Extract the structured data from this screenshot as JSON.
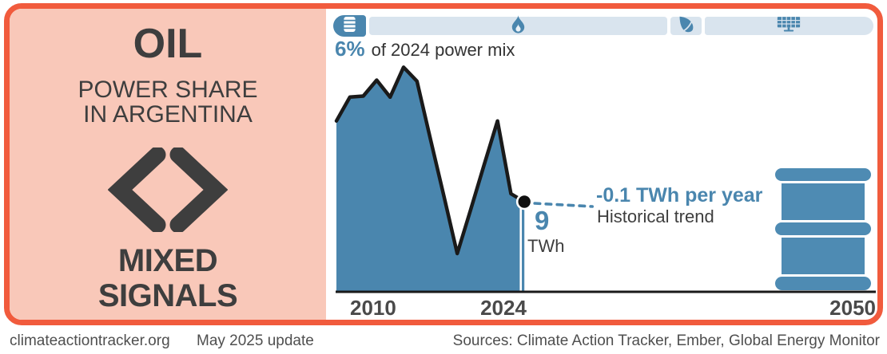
{
  "colors": {
    "accent_orange": "#F15B3D",
    "panel_salmon": "#F9C8B9",
    "accent_blue": "#4A86AE",
    "bar_track_blue": "#D9E4EE",
    "text_dark": "#3E3E3E",
    "line_black": "#1A1A1A"
  },
  "left_panel": {
    "title": "OIL",
    "subtitle_line1": "POWER SHARE",
    "subtitle_line2": "IN ARGENTINA",
    "verdict_line1": "MIXED",
    "verdict_line2": "SIGNALS"
  },
  "power_mix_bar": {
    "caption_value": "6%",
    "caption_text": "of 2024 power mix",
    "segments": [
      {
        "id": "oil",
        "icon": "oil-barrel-icon",
        "share_pct": 6.2,
        "active": true
      },
      {
        "id": "gas",
        "icon": "flame-icon",
        "share_pct": 56.2,
        "active": false
      },
      {
        "id": "bioenergy",
        "icon": "leaf-icon",
        "share_pct": 5.8,
        "active": false
      },
      {
        "id": "solar",
        "icon": "solar-panel-icon",
        "share_pct": 31.8,
        "active": false
      }
    ]
  },
  "chart_data": {
    "type": "area",
    "unit": "TWh",
    "x": [
      2010,
      2011,
      2012,
      2013,
      2014,
      2015,
      2016,
      2017,
      2018,
      2019,
      2020,
      2021,
      2022,
      2023,
      2024
    ],
    "values": [
      17.1,
      19.5,
      19.6,
      21.2,
      19.5,
      22.5,
      21.1,
      15.3,
      9.6,
      3.8,
      8.2,
      12.7,
      17.1,
      9.8,
      9
    ],
    "x_axis_ticks": [
      "2010",
      "2024",
      "2050"
    ],
    "x_axis_range": [
      2010,
      2050
    ],
    "ylim": [
      0,
      26
    ],
    "grid": false,
    "end_point": {
      "year": 2024,
      "value_label": "9",
      "unit_label": "TWh"
    },
    "trend": {
      "label": "-0.1 TWh per year",
      "sublabel": "Historical trend",
      "slope_twh_per_year": -0.1
    }
  },
  "footer": {
    "site": "climateactiontracker.org",
    "update": "May 2025 update",
    "sources": "Sources: Climate Action Tracker, Ember, Global Energy Monitor"
  }
}
